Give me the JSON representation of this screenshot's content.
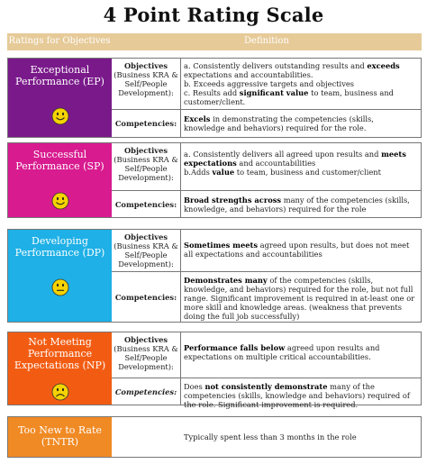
{
  "title": "4 Point Rating Scale",
  "header": {
    "col1": "Ratings for Objectives",
    "col2": "Definition"
  },
  "colors": {
    "header": "#e6ca98",
    "ep": "#7a1a8a",
    "sp": "#d81b8f",
    "dp": "#1eb0e6",
    "np": "#f25c12",
    "tntr": "#f08a24",
    "face": "#f5d300"
  },
  "labels": {
    "objectives": "Objectives",
    "objectives_sub": "(Business KRA & Self/People Development):",
    "competencies": "Competencies:"
  },
  "ratings": [
    {
      "name": "Exceptional Performance (EP)",
      "icon": "happy-face-icon",
      "objectives_lines": [
        "a. Consistently delivers outstanding results and exceeds expectations and accountabilities.",
        "b. Exceeds aggressive targets and objectives",
        "c. Results add significant value to team, business and customer/client."
      ],
      "competencies": "Excels in demonstrating the competencies (skills, knowledge and behaviors) required for the role."
    },
    {
      "name": "Successful Performance (SP)",
      "icon": "happy-face-icon",
      "objectives_lines": [
        "a. Consistently delivers all agreed upon results and meets expectations and accountabilities",
        "b.Adds value to team, business and customer/client"
      ],
      "competencies": "Broad strengths across many of the competencies (skills, knowledge, and behaviors) required for the role"
    },
    {
      "name": "Developing Performance (DP)",
      "icon": "neutral-face-icon",
      "objectives_lines": [
        "Sometimes meets agreed upon results, but does not meet all expectations and accountabilities"
      ],
      "competencies": "Demonstrates many of the competencies (skills, knowledge, and behaviors) required for the role, but not full range. Significant improvement is required in at-least one or more skill and knowledge areas. (weakness that prevents doing the full job successfully)"
    },
    {
      "name": "Not Meeting Performance Expectations (NP)",
      "icon": "sad-face-icon",
      "objectives_lines": [
        "Performance falls below agreed upon results and expectations on multiple critical accountabilities."
      ],
      "competencies": "Does not consistently demonstrate many of the competencies (skills, knowledge and behaviors) required of the role. Significant improvement is required."
    }
  ],
  "tntr": {
    "name": "Too New to Rate (TNTR)",
    "definition": "Typically spent less than 3 months in the role"
  }
}
